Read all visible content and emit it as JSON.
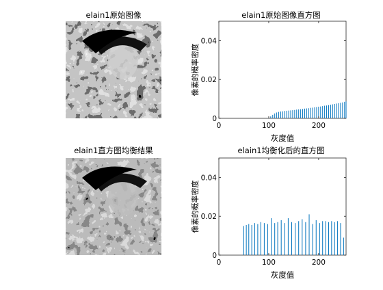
{
  "figure": {
    "image1_title": "elain1原始图像",
    "image2_title": "elain1直方图均衡结果"
  },
  "chart_data": [
    {
      "type": "bar",
      "title": "elain1原始图像直方图",
      "xlabel": "灰度值",
      "ylabel": "像素的概率密度",
      "xlim": [
        0,
        255
      ],
      "ylim": [
        0,
        0.05
      ],
      "xticks": [
        0,
        100,
        200
      ],
      "yticks": [
        0,
        0.02,
        0.04
      ],
      "ytick_labels": [
        "0",
        "0.02",
        "0.04"
      ],
      "grid": false,
      "x": [
        100,
        104,
        108,
        112,
        116,
        120,
        124,
        128,
        132,
        136,
        140,
        144,
        148,
        152,
        156,
        160,
        164,
        168,
        172,
        176,
        180,
        184,
        188,
        192,
        196,
        200,
        204,
        208,
        212,
        216,
        220,
        224,
        228,
        232,
        236,
        240,
        244,
        248,
        252,
        255
      ],
      "values": [
        0.0004,
        0.001,
        0.0018,
        0.0025,
        0.003,
        0.0033,
        0.0035,
        0.0036,
        0.0038,
        0.0039,
        0.004,
        0.0041,
        0.0042,
        0.0043,
        0.0045,
        0.0046,
        0.0047,
        0.0048,
        0.005,
        0.0051,
        0.0052,
        0.0054,
        0.0055,
        0.0057,
        0.0058,
        0.006,
        0.0061,
        0.0063,
        0.0065,
        0.0066,
        0.0068,
        0.007,
        0.0072,
        0.0074,
        0.0076,
        0.0078,
        0.008,
        0.0082,
        0.0085,
        0.0087
      ],
      "color": "#0072BD"
    },
    {
      "type": "bar",
      "title": "elain1均衡化后的直方图",
      "xlabel": "灰度值",
      "ylabel": "像素的概率密度",
      "xlim": [
        0,
        255
      ],
      "ylim": [
        0,
        0.05
      ],
      "xticks": [
        0,
        100,
        200
      ],
      "yticks": [
        0,
        0.02,
        0.04
      ],
      "ytick_labels": [
        "0",
        "0.02",
        "0.04"
      ],
      "grid": false,
      "x": [
        50,
        55,
        60,
        66,
        72,
        78,
        84,
        91,
        98,
        105,
        112,
        118,
        125,
        132,
        139,
        146,
        153,
        160,
        167,
        174,
        181,
        188,
        195,
        202,
        208,
        214,
        220,
        226,
        232,
        238,
        244,
        250
      ],
      "values": [
        0.015,
        0.0155,
        0.016,
        0.0155,
        0.0165,
        0.016,
        0.017,
        0.0165,
        0.016,
        0.019,
        0.0165,
        0.017,
        0.018,
        0.0165,
        0.019,
        0.017,
        0.0165,
        0.0175,
        0.0185,
        0.017,
        0.021,
        0.016,
        0.018,
        0.0165,
        0.0175,
        0.0175,
        0.017,
        0.0175,
        0.017,
        0.0175,
        0.0165,
        0.009
      ],
      "color": "#0072BD"
    }
  ]
}
